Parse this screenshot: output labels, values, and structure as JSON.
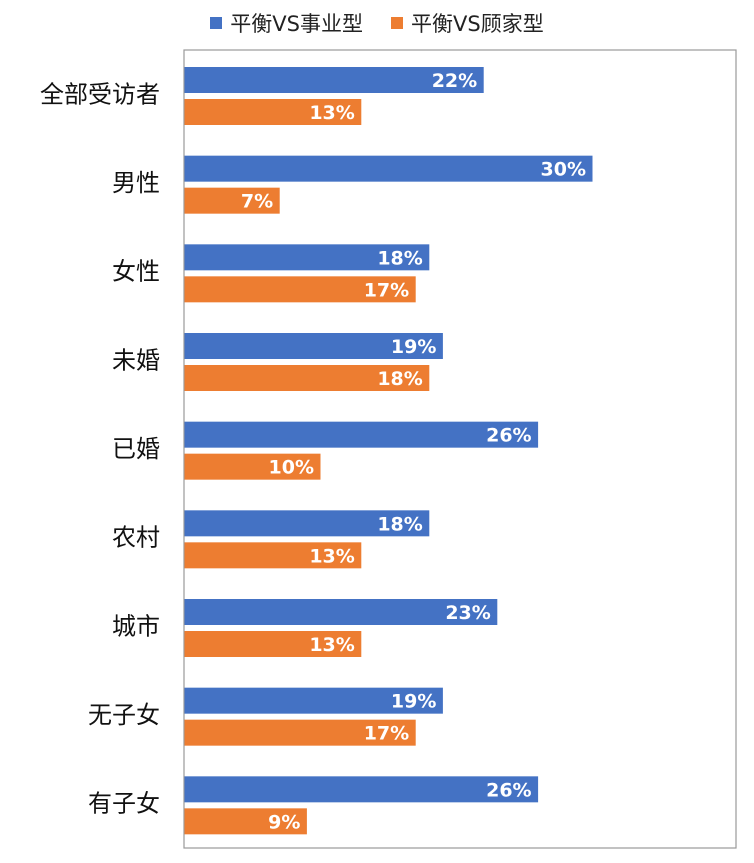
{
  "chart_data": {
    "type": "bar",
    "orientation": "horizontal",
    "categories": [
      "全部受访者",
      "男性",
      "女性",
      "未婚",
      "已婚",
      "农村",
      "城市",
      "无子女",
      "有子女"
    ],
    "series": [
      {
        "name": "平衡VS事业型",
        "color": "#4472C4",
        "values": [
          22,
          30,
          18,
          19,
          26,
          18,
          23,
          19,
          26
        ],
        "labels": [
          "22%",
          "30%",
          "18%",
          "19%",
          "26%",
          "18%",
          "23%",
          "19%",
          "26%"
        ]
      },
      {
        "name": "平衡VS顾家型",
        "color": "#ED7D31",
        "values": [
          13,
          7,
          17,
          18,
          10,
          13,
          13,
          17,
          9
        ],
        "labels": [
          "13%",
          "7%",
          "17%",
          "18%",
          "10%",
          "13%",
          "13%",
          "17%",
          "9%"
        ]
      }
    ],
    "xlim": [
      0,
      38
    ],
    "legend_position": "top",
    "grid": false,
    "title": "",
    "xlabel": "",
    "ylabel": ""
  }
}
